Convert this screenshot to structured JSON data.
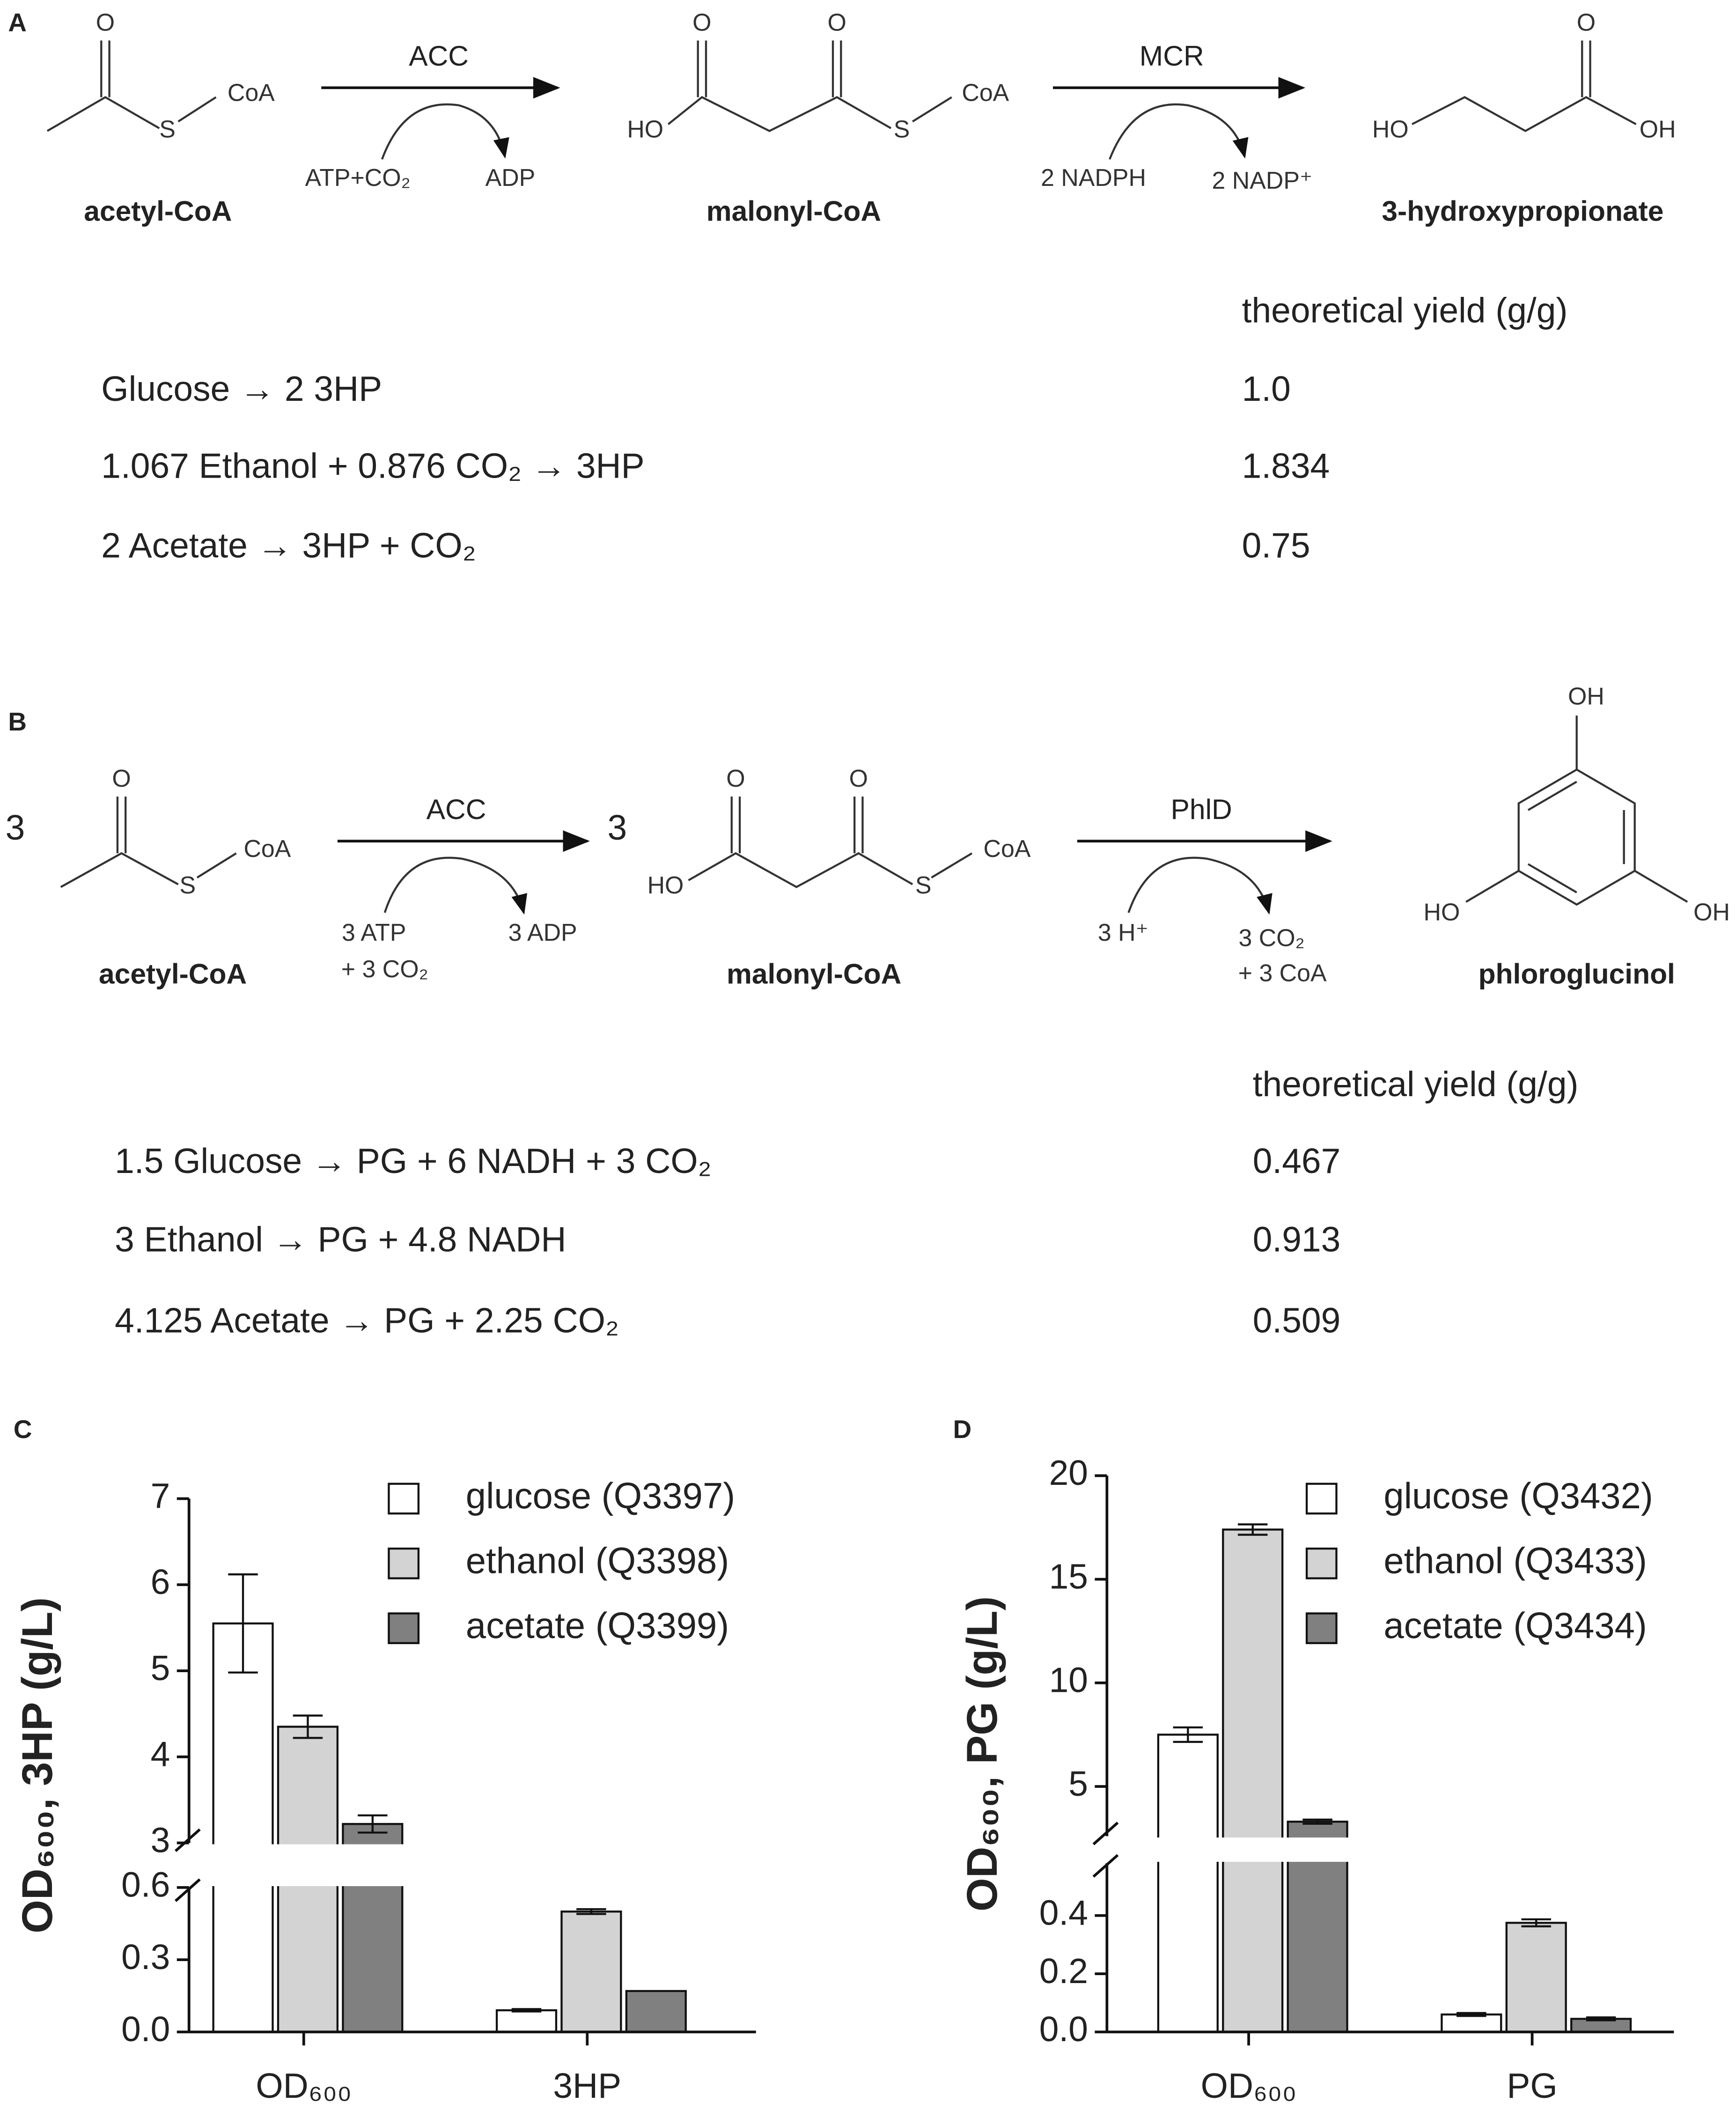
{
  "panel_a": {
    "label": "A",
    "coefficients": [],
    "compounds": [
      {
        "name": "acetyl-CoA",
        "atoms": [
          "O",
          "S",
          "CoA"
        ]
      },
      {
        "name": "malonyl-CoA",
        "atoms": [
          "O",
          "O",
          "HO",
          "S",
          "CoA"
        ]
      },
      {
        "name": "3-hydroxypropionate",
        "atoms": [
          "O",
          "HO",
          "OH"
        ]
      }
    ],
    "steps": [
      {
        "enzyme": "ACC",
        "consumed": [
          "ATP+CO₂"
        ],
        "released": [
          "ADP"
        ]
      },
      {
        "enzyme": "MCR",
        "consumed": [
          "2 NADPH"
        ],
        "released": [
          "2 NADP⁺"
        ]
      }
    ],
    "yield_header": "theoretical yield (g/g)",
    "equations": [
      {
        "reaction": "Glucose → 2 3HP",
        "yield": "1.0"
      },
      {
        "reaction": "1.067 Ethanol + 0.876 CO₂ → 3HP",
        "yield": "1.834"
      },
      {
        "reaction": "2 Acetate → 3HP + CO₂",
        "yield": "0.75"
      }
    ]
  },
  "panel_b": {
    "label": "B",
    "coefficients": [
      "3",
      "3"
    ],
    "compounds": [
      {
        "name": "acetyl-CoA",
        "atoms": [
          "O",
          "S",
          "CoA"
        ]
      },
      {
        "name": "malonyl-CoA",
        "atoms": [
          "O",
          "O",
          "HO",
          "S",
          "CoA"
        ]
      },
      {
        "name": "phloroglucinol",
        "atoms": [
          "OH",
          "HO",
          "OH"
        ]
      }
    ],
    "steps": [
      {
        "enzyme": "ACC",
        "consumed": [
          "3 ATP",
          "+ 3 CO₂"
        ],
        "released": [
          "3 ADP"
        ]
      },
      {
        "enzyme": "PhlD",
        "consumed": [
          "3 H⁺"
        ],
        "released": [
          "3 CO₂",
          "+ 3 CoA"
        ]
      }
    ],
    "yield_header": "theoretical yield (g/g)",
    "equations": [
      {
        "reaction": "1.5 Glucose → PG + 6 NADH + 3 CO₂",
        "yield": "0.467"
      },
      {
        "reaction": "3 Ethanol → PG + 4.8 NADH",
        "yield": "0.913"
      },
      {
        "reaction": "4.125 Acetate → PG + 2.25 CO₂",
        "yield": "0.509"
      }
    ]
  },
  "chart_data": [
    {
      "panel_label": "C",
      "type": "bar",
      "y_label": "OD₆₀₀, 3HP (g/L)",
      "legend": "upper right",
      "categories": [
        "OD₆₀₀",
        "3HP"
      ],
      "series": [
        {
          "name": "glucose (Q3397)",
          "color": "#ffffff",
          "values": [
            5.55,
            0.09
          ],
          "errors": [
            0.57,
            0.005
          ]
        },
        {
          "name": "ethanol (Q3398)",
          "color": "#d3d3d3",
          "values": [
            4.35,
            0.5
          ],
          "errors": [
            0.13,
            0.01
          ]
        },
        {
          "name": "acetate (Q3399)",
          "color": "#808080",
          "values": [
            3.22,
            0.17
          ],
          "errors": [
            0.1,
            0
          ]
        }
      ],
      "y_segments": [
        {
          "ylim": [
            0,
            0.6
          ],
          "yticks": [
            {
              "value": 0,
              "label": "0.0"
            },
            0.3,
            0.6
          ]
        },
        {
          "ylim": [
            3,
            7
          ],
          "yticks": [
            3,
            4,
            5,
            6,
            7
          ]
        }
      ]
    },
    {
      "panel_label": "D",
      "type": "bar",
      "y_label": "OD₆₀₀, PG (g/L)",
      "legend": "upper right",
      "categories": [
        "OD₆₀₀",
        "PG"
      ],
      "series": [
        {
          "name": "glucose (Q3432)",
          "color": "#ffffff",
          "values": [
            7.5,
            0.06
          ],
          "errors": [
            0.35,
            0.005
          ]
        },
        {
          "name": "ethanol (Q3433)",
          "color": "#d3d3d3",
          "values": [
            17.4,
            0.375
          ],
          "errors": [
            0.25,
            0.012
          ]
        },
        {
          "name": "acetate (Q3434)",
          "color": "#808080",
          "values": [
            3.3,
            0.045
          ],
          "errors": [
            0.1,
            0.005
          ]
        }
      ],
      "y_segments": [
        {
          "ylim": [
            0,
            0.58
          ],
          "yticks": [
            {
              "value": 0,
              "label": "0.0"
            },
            0.2,
            0.4
          ]
        },
        {
          "ylim": [
            2.6,
            20
          ],
          "yticks": [
            5,
            10,
            15,
            20
          ]
        }
      ]
    }
  ]
}
